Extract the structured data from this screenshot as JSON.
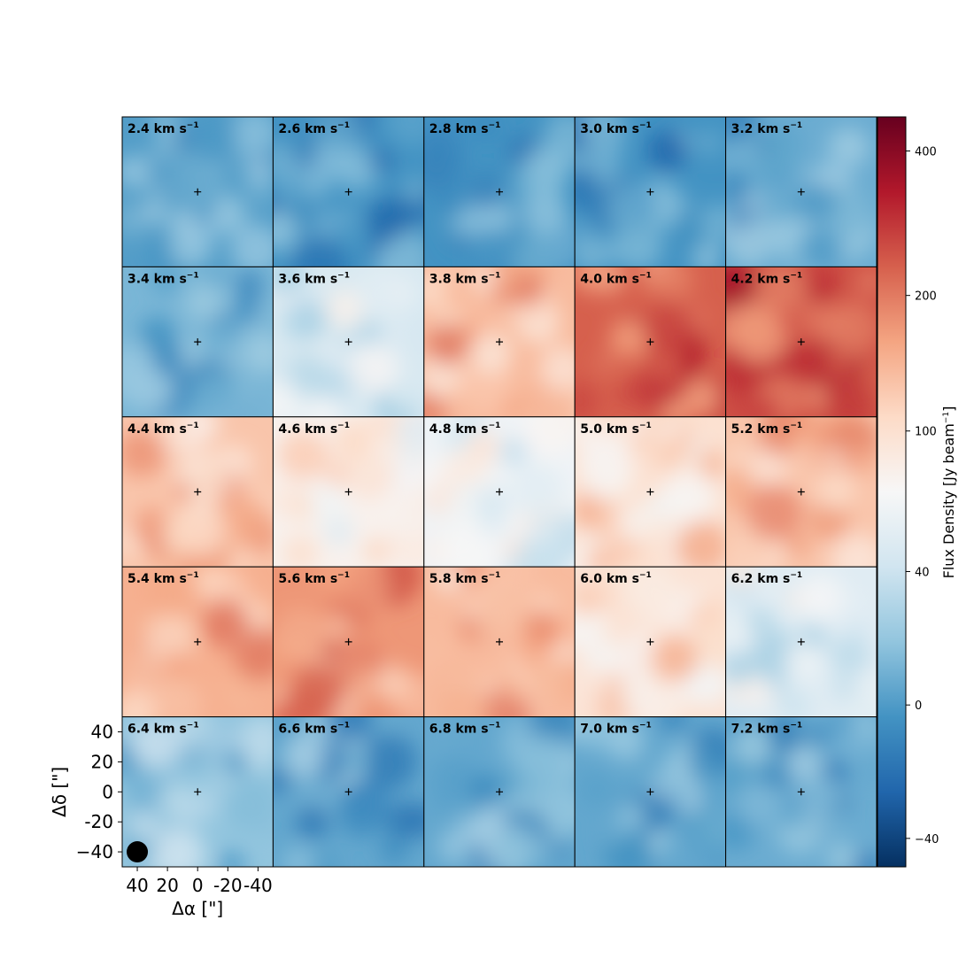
{
  "chart_data": {
    "type": "heatmap",
    "title": "",
    "grid_rows": 5,
    "grid_cols": 5,
    "panel_unit": "km s",
    "panel_unit_exp": "−1",
    "panels": [
      {
        "velocity": "2.4",
        "level": 0.22
      },
      {
        "velocity": "2.6",
        "level": 0.2
      },
      {
        "velocity": "2.8",
        "level": 0.2
      },
      {
        "velocity": "3.0",
        "level": 0.2
      },
      {
        "velocity": "3.2",
        "level": 0.25
      },
      {
        "velocity": "3.4",
        "level": 0.27
      },
      {
        "velocity": "3.6",
        "level": 0.42
      },
      {
        "velocity": "3.8",
        "level": 0.66
      },
      {
        "velocity": "4.0",
        "level": 0.8
      },
      {
        "velocity": "4.2",
        "level": 0.82
      },
      {
        "velocity": "4.4",
        "level": 0.64
      },
      {
        "velocity": "4.6",
        "level": 0.52
      },
      {
        "velocity": "4.8",
        "level": 0.48
      },
      {
        "velocity": "5.0",
        "level": 0.58
      },
      {
        "velocity": "5.2",
        "level": 0.64
      },
      {
        "velocity": "5.4",
        "level": 0.68
      },
      {
        "velocity": "5.6",
        "level": 0.72
      },
      {
        "velocity": "5.8",
        "level": 0.66
      },
      {
        "velocity": "6.0",
        "level": 0.57
      },
      {
        "velocity": "6.2",
        "level": 0.44
      },
      {
        "velocity": "6.4",
        "level": 0.3
      },
      {
        "velocity": "6.6",
        "level": 0.24
      },
      {
        "velocity": "6.8",
        "level": 0.24
      },
      {
        "velocity": "7.0",
        "level": 0.24
      },
      {
        "velocity": "7.2",
        "level": 0.25
      }
    ],
    "x_axis": {
      "label": "Δα [\"]",
      "ticks": [
        {
          "value": 40,
          "label": "40"
        },
        {
          "value": 20,
          "label": "20"
        },
        {
          "value": 0,
          "label": "0"
        },
        {
          "value": -20,
          "label": "-20"
        },
        {
          "value": -40,
          "label": "-40"
        }
      ],
      "range": [
        50,
        -50
      ],
      "inverted": true
    },
    "y_axis": {
      "label": "Δδ [\"]",
      "ticks": [
        {
          "value": 40,
          "label": "40"
        },
        {
          "value": 20,
          "label": "20"
        },
        {
          "value": 0,
          "label": "0"
        },
        {
          "value": -20,
          "label": "-20"
        },
        {
          "value": -40,
          "label": "−40"
        }
      ],
      "range": [
        -50,
        50
      ]
    },
    "beam": {
      "x": 40,
      "y": -40
    },
    "colorbar": {
      "label": "Flux Density [Jy beam",
      "label_exp": "−1",
      "label_close": "]",
      "colormap": "RdBu_r",
      "range": [
        -50,
        470
      ],
      "ticks": [
        {
          "value": 400,
          "label": "400"
        },
        {
          "value": 200,
          "label": "200"
        },
        {
          "value": 100,
          "label": "100"
        },
        {
          "value": 40,
          "label": "40"
        },
        {
          "value": 0,
          "label": "0"
        },
        {
          "value": -40,
          "label": "−40"
        }
      ],
      "tick_positions": [
        0.83,
        0.5,
        0.17,
        0.042,
        -0.049,
        -0.149
      ]
    }
  }
}
